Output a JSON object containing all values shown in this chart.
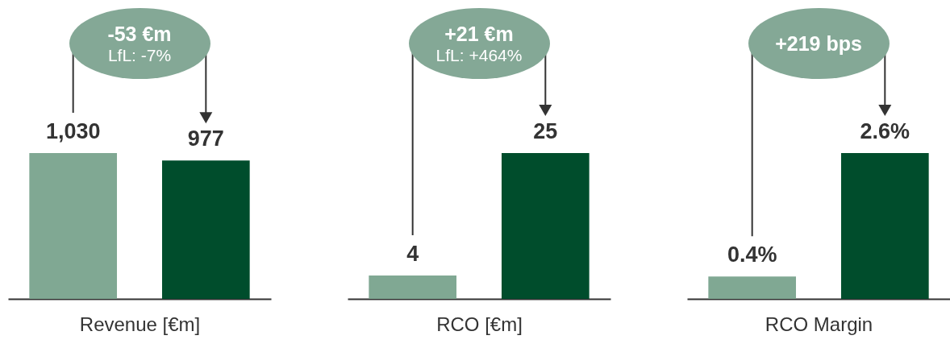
{
  "chart_data": [
    {
      "type": "bar",
      "xlabel": "Revenue [€m]",
      "categories": [
        null,
        null
      ],
      "values": [
        1030,
        977
      ],
      "colors": [
        "#80a893",
        "#004d2c"
      ],
      "value_labels": [
        "1,030",
        "977"
      ],
      "annotations": [
        "-53 €m",
        "LfL: -7%"
      ],
      "tick_labels": false
    },
    {
      "type": "bar",
      "xlabel": "RCO [€m]",
      "categories": [
        null,
        null
      ],
      "values": [
        4,
        25
      ],
      "colors": [
        "#80a893",
        "#004d2c"
      ],
      "value_labels": [
        "4",
        "25"
      ],
      "annotations": [
        "+21 €m",
        "LfL: +464%"
      ],
      "tick_labels": false
    },
    {
      "type": "bar",
      "xlabel": "RCO Margin",
      "categories": [
        null,
        null
      ],
      "values": [
        0.4,
        2.6
      ],
      "colors": [
        "#80a893",
        "#004d2c"
      ],
      "value_labels": [
        "0.4%",
        "2.6%"
      ],
      "annotations": [
        "+219 bps"
      ],
      "tick_labels": false
    }
  ]
}
